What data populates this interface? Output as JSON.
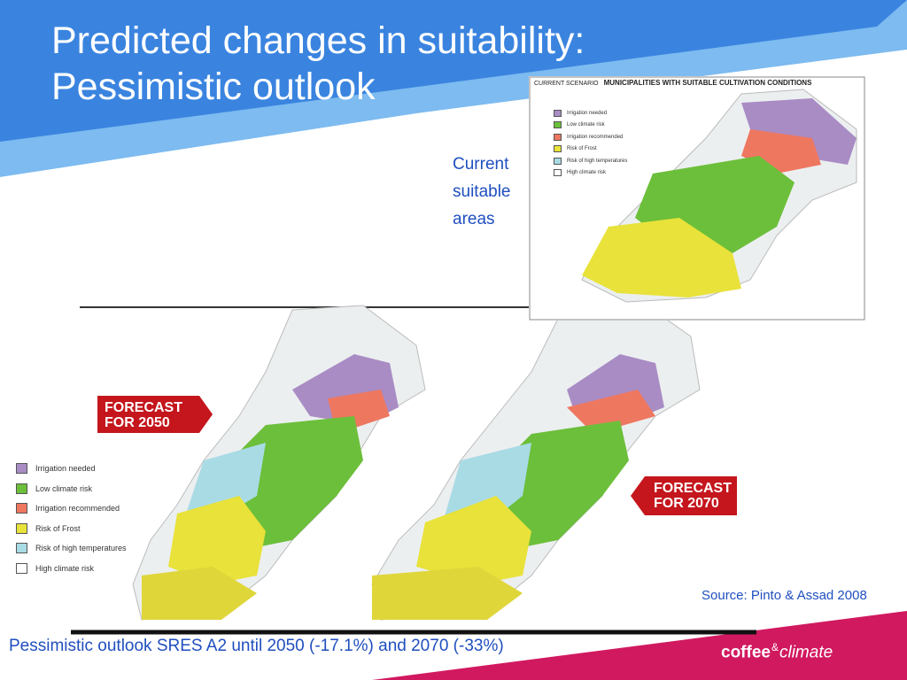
{
  "slide": {
    "title_line1": "Predicted changes in suitability:",
    "title_line2": "Pessimistic outlook",
    "current_label": [
      "Current",
      "suitable",
      "areas"
    ],
    "source": "Source: Pinto & Assad 2008",
    "footer_note": "Pessimistic outlook SRES A2 until 2050 (-17.1%) and 2070 (-33%)",
    "brand": {
      "part1": "coffee",
      "amp": "&",
      "part2": "climate"
    }
  },
  "inset_map": {
    "scenario_label": "CURRENT SCENARIO",
    "heading": "MUNICIPALITIES WITH SUITABLE CULTIVATION CONDITIONS"
  },
  "forecast_2050": {
    "line1": "FORECAST",
    "line2": "FOR 2050"
  },
  "forecast_2070": {
    "line1": "FORECAST",
    "line2": "FOR 2070"
  },
  "legend": [
    {
      "label": "Irrigation needed",
      "color": "#a98cc4"
    },
    {
      "label": "Low climate risk",
      "color": "#6cbf3a"
    },
    {
      "label": "Irrigation recommended",
      "color": "#ee7760"
    },
    {
      "label": "Risk of Frost",
      "color": "#e8e23a"
    },
    {
      "label": "Risk of high temperatures",
      "color": "#a9dbe5"
    },
    {
      "label": "High climate risk",
      "color": "#ffffff"
    }
  ],
  "colors": {
    "blue_dark": "#3a84e0",
    "blue_light": "#7dbbf0",
    "magenta": "#d1195f",
    "text_blue": "#1f4fbf",
    "forecast_red": "#c4161c"
  }
}
